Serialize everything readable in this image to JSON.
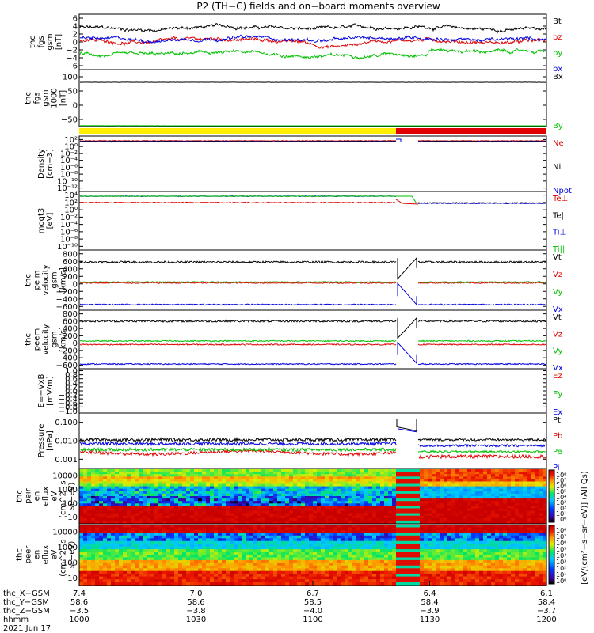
{
  "title": "P2 (TH−C) fields and on−board moments overview",
  "colors": {
    "black": "#000000",
    "red": "#e00000",
    "green": "#00c000",
    "blue": "#0000e0",
    "yellow": "#ffee00",
    "mode_red": "#e00000"
  },
  "chart_data": [
    {
      "type": "line",
      "panel": "thc_fgs_gsm",
      "ylabel": [
        "thc",
        "fgs",
        "gsm",
        "[nT]"
      ],
      "yticks": [
        "6",
        "4",
        "2",
        "0",
        "−2",
        "−4",
        "−6"
      ],
      "ylim": [
        -6,
        6.5
      ],
      "series": [
        {
          "name": "Bt",
          "color": "black",
          "level": 3.4
        },
        {
          "name": "bz",
          "color": "red",
          "level": 0.5
        },
        {
          "name": "by",
          "color": "green",
          "level": -2.6
        },
        {
          "name": "bx",
          "color": "blue",
          "level": 1.0
        }
      ]
    },
    {
      "type": "line",
      "panel": "thc_fgs_gsm_large",
      "ylabel": [
        "thc",
        "fgs",
        "gsm",
        "1000",
        "[nT]"
      ],
      "yticks": [
        "100",
        "50",
        "0",
        "−50"
      ],
      "ylim": [
        -80,
        100
      ],
      "series": [
        {
          "name": "Bx",
          "color": "black",
          "level": 60
        },
        {
          "name": "By",
          "color": "green",
          "level": -77
        }
      ]
    },
    {
      "type": "line",
      "panel": "density",
      "scale": "log",
      "ylabel": [
        "Density",
        "[cm−3]"
      ],
      "yticks": [
        "10²",
        "10⁰",
        "10⁻²",
        "10⁻⁴",
        "10⁻⁶",
        "10⁻⁸",
        "10⁻¹⁰",
        "10⁻¹²"
      ],
      "ylim": [
        -13,
        2
      ],
      "series": [
        {
          "name": "Ne",
          "color": "red"
        },
        {
          "name": "Ni",
          "color": "black"
        },
        {
          "name": "Npot",
          "color": "blue"
        }
      ]
    },
    {
      "type": "line",
      "panel": "temperature",
      "scale": "log",
      "ylabel": [
        "moqt3",
        "[eV]"
      ],
      "yticks": [
        "10⁴",
        "10²",
        "10⁰",
        "10⁻²",
        "10⁻⁴",
        "10⁻⁶",
        "10⁻⁸",
        "10⁻¹⁰"
      ],
      "ylim": [
        -10,
        4
      ],
      "series": [
        {
          "name": "Te⊥",
          "color": "red"
        },
        {
          "name": "Te||",
          "color": "black"
        },
        {
          "name": "Ti⊥",
          "color": "blue"
        },
        {
          "name": "Ti||",
          "color": "green"
        }
      ]
    },
    {
      "type": "line",
      "panel": "peim_velocity",
      "ylabel": [
        "thc",
        "peim",
        "velocity",
        "gsm",
        "[km/s]"
      ],
      "yticks": [
        "800",
        "600",
        "400",
        "200",
        "0",
        "−200",
        "−400",
        "−600"
      ],
      "ylim": [
        -700,
        800
      ],
      "series": [
        {
          "name": "Vt",
          "color": "black"
        },
        {
          "name": "Vz",
          "color": "red"
        },
        {
          "name": "Vy",
          "color": "green"
        },
        {
          "name": "Vx",
          "color": "blue"
        }
      ]
    },
    {
      "type": "line",
      "panel": "peem_velocity",
      "ylabel": [
        "thc",
        "peem",
        "velocity",
        "gsm",
        "[km/s]"
      ],
      "yticks": [
        "800",
        "600",
        "400",
        "200",
        "0",
        "−200",
        "−400",
        "−600"
      ],
      "ylim": [
        -700,
        800
      ],
      "series": [
        {
          "name": "Vt",
          "color": "black"
        },
        {
          "name": "Vz",
          "color": "red"
        },
        {
          "name": "Vy",
          "color": "green"
        },
        {
          "name": "Vx",
          "color": "blue"
        }
      ]
    },
    {
      "type": "line",
      "panel": "efield",
      "ylabel": [
        "E=−VxB",
        "[mV/m]"
      ],
      "yticks": [
        "1.0",
        "0.8",
        "0.6",
        "0.4",
        "0.2",
        "0.0",
        "−0.2",
        "−0.4",
        "−0.6",
        "−0.8",
        "−1.0"
      ],
      "ylim": [
        -1,
        1
      ],
      "series": [
        {
          "name": "Ez",
          "color": "red"
        },
        {
          "name": "Ey",
          "color": "green"
        },
        {
          "name": "Ex",
          "color": "blue"
        }
      ]
    },
    {
      "type": "line",
      "panel": "pressure",
      "scale": "log",
      "ylabel": [
        "Pressure",
        "[nPa]"
      ],
      "yticks": [
        "0.100",
        "0.010",
        "0.001"
      ],
      "ylim": [
        -3.2,
        -0.4
      ],
      "series": [
        {
          "name": "Pt",
          "color": "black"
        },
        {
          "name": "Pb",
          "color": "red"
        },
        {
          "name": "Pe",
          "color": "green"
        },
        {
          "name": "Pi",
          "color": "blue"
        }
      ]
    },
    {
      "type": "heatmap",
      "panel": "peir_spectrogram",
      "ylabel": [
        "thc",
        "peir",
        "en",
        "eflux",
        "eV",
        "(cm^2−s−",
        "sr−eV)"
      ],
      "yticks": [
        "10000",
        "1000",
        "100",
        "10"
      ]
    },
    {
      "type": "heatmap",
      "panel": "peer_spectrogram",
      "ylabel": [
        "thc",
        "peer",
        "en",
        "eflux",
        "eV",
        "(cm^2−s−",
        "sr−eV)"
      ],
      "yticks": [
        "10000",
        "1000",
        "100",
        "10"
      ]
    }
  ],
  "colorbar": {
    "label": "[eV/(cm²−s−sr−eV)] (All Qs)",
    "ticks": [
      "10⁸",
      "10⁷",
      "10⁶",
      "10⁵",
      "10⁴",
      "10³",
      "10²",
      "10¹",
      "10⁰"
    ]
  },
  "x_axis": {
    "rows": [
      {
        "label": "thc_X−GSM",
        "values": [
          "7.4",
          "7.0",
          "6.7",
          "6.4",
          "6.1"
        ]
      },
      {
        "label": "thc_Y−GSM",
        "values": [
          "58.6",
          "58.6",
          "58.5",
          "58.4",
          "58.4"
        ]
      },
      {
        "label": "thc_Z−GSM",
        "values": [
          "−3.5",
          "−3.8",
          "−4.0",
          "−3.9",
          "−3.7"
        ]
      },
      {
        "label": "hhmm",
        "values": [
          "1000",
          "1030",
          "1100",
          "1130",
          "1200"
        ]
      }
    ],
    "date": "2021 Jun 17"
  }
}
